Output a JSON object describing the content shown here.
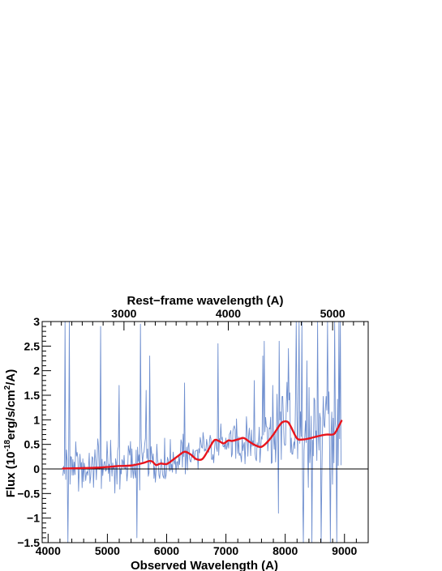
{
  "chart_data": {
    "type": "line",
    "title": "",
    "xlabel": "Observed Wavelength (A)",
    "ylabel_parts": [
      "Flux (10",
      "-18",
      "erg/s/cm",
      "2",
      "/A)"
    ],
    "top_axis_label": "Rest−frame wavelength (A)",
    "xlim": [
      3900,
      9400
    ],
    "ylim": [
      -1.5,
      3
    ],
    "x_ticks": [
      4000,
      5000,
      6000,
      7000,
      8000,
      9000
    ],
    "x_tick_labels": [
      "4000",
      "5000",
      "6000",
      "7000",
      "8000",
      "9000"
    ],
    "y_ticks": [
      -1.5,
      -1,
      -0.5,
      0,
      0.5,
      1,
      1.5,
      2,
      2.5,
      3
    ],
    "y_tick_labels": [
      "−1.5",
      "−1",
      "−0.5",
      "0",
      "0.5",
      "1",
      "1.5",
      "2",
      "2.5",
      "3"
    ],
    "top_axis_ratio": 1.76,
    "top_ticks": [
      3000,
      4000,
      5000
    ],
    "top_tick_labels": [
      "3000",
      "4000",
      "5000"
    ],
    "zero_line": true,
    "series": [
      {
        "role": "observed-spectrum",
        "color": "#6f8fcf",
        "x_start": 4250,
        "x_end": 8950,
        "x_step": 12,
        "envelope": {
          "x": [
            4250,
            4500,
            4800,
            5200,
            5600,
            6000,
            6400,
            6800,
            7200,
            7600,
            7800,
            8000,
            8200,
            8400,
            8600,
            8800,
            8950
          ],
          "mid": [
            0.02,
            0.03,
            0.05,
            0.08,
            0.12,
            0.15,
            0.3,
            0.5,
            0.6,
            0.55,
            0.7,
            0.9,
            0.65,
            0.62,
            0.68,
            0.7,
            0.95
          ],
          "amp": [
            0.45,
            0.55,
            0.6,
            0.6,
            0.6,
            0.55,
            0.5,
            0.45,
            0.5,
            0.55,
            0.9,
            1.1,
            1.3,
            1.4,
            1.3,
            1.2,
            1.3
          ]
        },
        "spikes": [
          {
            "x": 4290,
            "y": 3.0
          },
          {
            "x": 4330,
            "y": -1.5
          },
          {
            "x": 4360,
            "y": 3.0
          },
          {
            "x": 4880,
            "y": 2.9
          },
          {
            "x": 5200,
            "y": 1.7
          },
          {
            "x": 5500,
            "y": -1.4
          },
          {
            "x": 5560,
            "y": 2.95
          },
          {
            "x": 5650,
            "y": 1.6
          },
          {
            "x": 5710,
            "y": 2.3
          },
          {
            "x": 6300,
            "y": 1.75
          },
          {
            "x": 6870,
            "y": 2.55
          },
          {
            "x": 7480,
            "y": 1.8
          },
          {
            "x": 7620,
            "y": 2.3
          },
          {
            "x": 7650,
            "y": 2.6
          },
          {
            "x": 7790,
            "y": 1.7
          },
          {
            "x": 7880,
            "y": -0.9
          },
          {
            "x": 7900,
            "y": 2.6
          },
          {
            "x": 8050,
            "y": 2.45
          },
          {
            "x": 8180,
            "y": 3.0
          },
          {
            "x": 8230,
            "y": 3.0
          },
          {
            "x": 8280,
            "y": 3.0
          },
          {
            "x": 8310,
            "y": -1.5
          },
          {
            "x": 8370,
            "y": 2.2
          },
          {
            "x": 8450,
            "y": -1.5
          },
          {
            "x": 8540,
            "y": 3.0
          },
          {
            "x": 8600,
            "y": -1.5
          },
          {
            "x": 8710,
            "y": 3.0
          },
          {
            "x": 8760,
            "y": -1.5
          },
          {
            "x": 8830,
            "y": 3.0
          },
          {
            "x": 8870,
            "y": -1.5
          },
          {
            "x": 8900,
            "y": 3.0
          },
          {
            "x": 8930,
            "y": 3.0
          }
        ]
      },
      {
        "role": "smoothed-model",
        "color": "#e8141c",
        "x": [
          4250,
          4500,
          4800,
          5000,
          5200,
          5400,
          5600,
          5700,
          5760,
          5820,
          5900,
          6000,
          6100,
          6200,
          6300,
          6400,
          6500,
          6600,
          6700,
          6800,
          6880,
          6960,
          7040,
          7100,
          7200,
          7300,
          7400,
          7500,
          7600,
          7700,
          7800,
          7900,
          7950,
          8000,
          8050,
          8100,
          8200,
          8300,
          8400,
          8500,
          8600,
          8700,
          8800,
          8850,
          8950
        ],
        "y": [
          0.01,
          0.015,
          0.025,
          0.04,
          0.06,
          0.07,
          0.12,
          0.16,
          0.15,
          0.08,
          0.11,
          0.1,
          0.18,
          0.27,
          0.35,
          0.3,
          0.2,
          0.2,
          0.38,
          0.58,
          0.57,
          0.52,
          0.58,
          0.57,
          0.6,
          0.63,
          0.55,
          0.48,
          0.45,
          0.55,
          0.7,
          0.88,
          0.95,
          0.97,
          0.95,
          0.85,
          0.62,
          0.6,
          0.62,
          0.65,
          0.68,
          0.7,
          0.7,
          0.75,
          0.98
        ]
      }
    ]
  }
}
